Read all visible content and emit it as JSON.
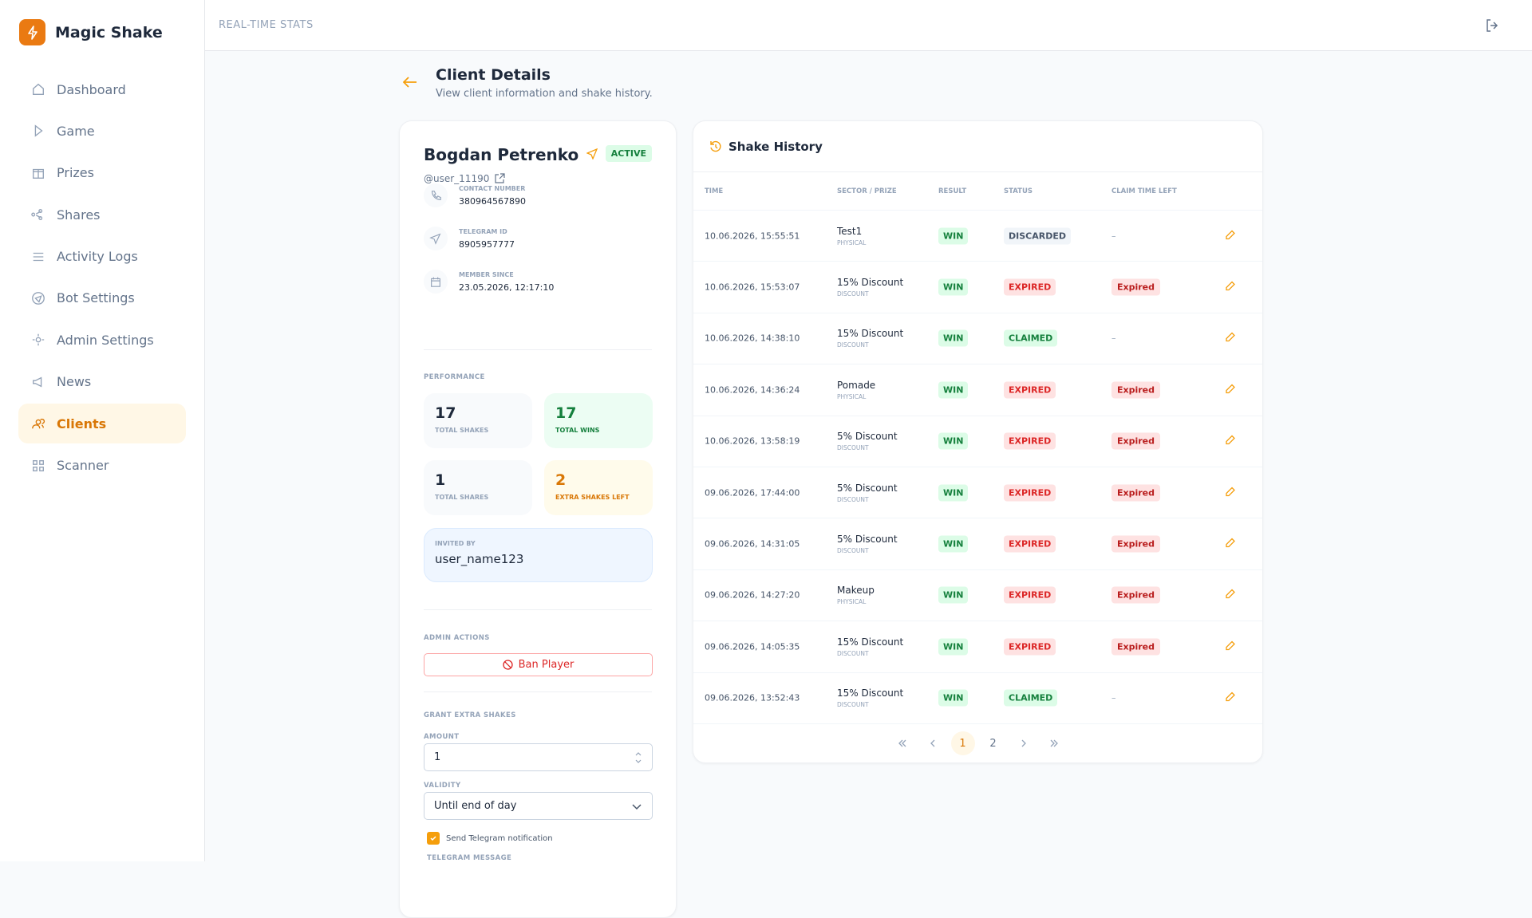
{
  "brand": "Magic Shake",
  "nav": [
    "Dashboard",
    "Game",
    "Prizes",
    "Shares",
    "Activity Logs",
    "Bot Settings",
    "Admin Settings",
    "News",
    "Clients",
    "Scanner"
  ],
  "nav_active": 8,
  "header": {
    "title": "REAL-TIME STATS"
  },
  "page": {
    "title": "Client Details",
    "subtitle": "View client information and shake history."
  },
  "client": {
    "name": "Bogdan Petrenko",
    "status": "ACTIVE",
    "username": "@user_11190",
    "fields": [
      {
        "label": "CONTACT NUMBER",
        "value": "380964567890"
      },
      {
        "label": "TELEGRAM ID",
        "value": "8905957777"
      },
      {
        "label": "MEMBER SINCE",
        "value": "23.05.2026, 12:17:10"
      }
    ],
    "performance_label": "PERFORMANCE",
    "stats": [
      {
        "value": 17,
        "label": "TOTAL SHAKES"
      },
      {
        "value": 17,
        "label": "TOTAL WINS"
      },
      {
        "value": 1,
        "label": "TOTAL SHARES"
      },
      {
        "value": 2,
        "label": "EXTRA SHAKES LEFT"
      }
    ],
    "invited_label": "INVITED BY",
    "invited_by": "user_name123",
    "admin_actions_label": "ADMIN ACTIONS",
    "ban_button": "Ban Player",
    "grant": {
      "title": "GRANT EXTRA SHAKES",
      "amount_label": "AMOUNT",
      "amount": "1",
      "validity_label": "VALIDITY",
      "validity": "Until end of day",
      "notify": "Send Telegram notification",
      "message_label": "TELEGRAM MESSAGE"
    }
  },
  "history": {
    "title": "Shake History",
    "columns": [
      "TIME",
      "SECTOR / PRIZE",
      "RESULT",
      "STATUS",
      "CLAIM TIME LEFT"
    ],
    "rows": [
      {
        "time": "10.06.2026, 15:55:51",
        "prize": "Test1",
        "type": "PHYSICAL",
        "result": "WIN",
        "status": "DISCARDED",
        "claim": "–"
      },
      {
        "time": "10.06.2026, 15:53:07",
        "prize": "15% Discount",
        "type": "DISCOUNT",
        "result": "WIN",
        "status": "EXPIRED",
        "claim": "Expired"
      },
      {
        "time": "10.06.2026, 14:38:10",
        "prize": "15% Discount",
        "type": "DISCOUNT",
        "result": "WIN",
        "status": "CLAIMED",
        "claim": "–"
      },
      {
        "time": "10.06.2026, 14:36:24",
        "prize": "Pomade",
        "type": "PHYSICAL",
        "result": "WIN",
        "status": "EXPIRED",
        "claim": "Expired"
      },
      {
        "time": "10.06.2026, 13:58:19",
        "prize": "5% Discount",
        "type": "DISCOUNT",
        "result": "WIN",
        "status": "EXPIRED",
        "claim": "Expired"
      },
      {
        "time": "09.06.2026, 17:44:00",
        "prize": "5% Discount",
        "type": "DISCOUNT",
        "result": "WIN",
        "status": "EXPIRED",
        "claim": "Expired"
      },
      {
        "time": "09.06.2026, 14:31:05",
        "prize": "5% Discount",
        "type": "DISCOUNT",
        "result": "WIN",
        "status": "EXPIRED",
        "claim": "Expired"
      },
      {
        "time": "09.06.2026, 14:27:20",
        "prize": "Makeup",
        "type": "PHYSICAL",
        "result": "WIN",
        "status": "EXPIRED",
        "claim": "Expired"
      },
      {
        "time": "09.06.2026, 14:05:35",
        "prize": "15% Discount",
        "type": "DISCOUNT",
        "result": "WIN",
        "status": "EXPIRED",
        "claim": "Expired"
      },
      {
        "time": "09.06.2026, 13:52:43",
        "prize": "15% Discount",
        "type": "DISCOUNT",
        "result": "WIN",
        "status": "CLAIMED",
        "claim": "–"
      }
    ],
    "pages": [
      "1",
      "2"
    ],
    "page_active": 0
  }
}
